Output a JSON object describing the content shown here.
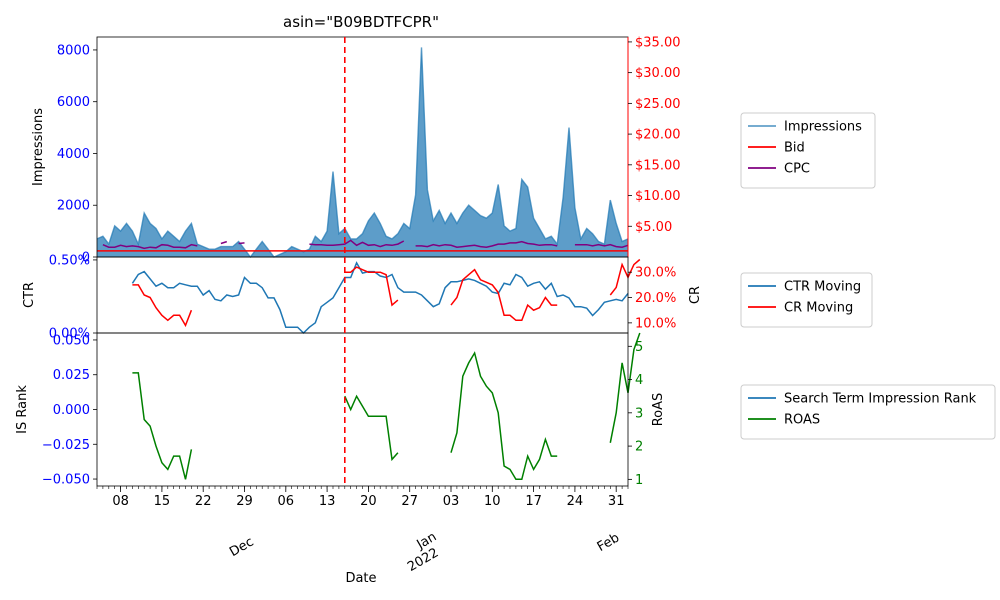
{
  "chart_data": {
    "title": "asin=\"B09BDTFCPR\"",
    "xlabel": "Date",
    "x_tick_labels": [
      "08",
      "15",
      "22",
      "29",
      "06",
      "13",
      "20",
      "27",
      "03",
      "10",
      "17",
      "24",
      "31"
    ],
    "x_month_labels": [
      {
        "text": "Dec",
        "sub": ""
      },
      {
        "text": "Jan",
        "sub": "2022"
      },
      {
        "text": "Feb",
        "sub": ""
      }
    ],
    "colors": {
      "impressions": "#1f77b4",
      "bid": "#ff0000",
      "cpc": "#800080",
      "ctr": "#1f77b4",
      "cr": "#ff0000",
      "is_rank": "#1f77b4",
      "roas": "#008000",
      "left_axis": "#0000ff",
      "vline": "#ff0000"
    },
    "panels": [
      {
        "id": "top",
        "type": "area+line",
        "ylabel_left": "Impressions",
        "ylabel_right": "",
        "ylim_left": [
          0,
          8500
        ],
        "yticks_left": [
          "0",
          "2000",
          "4000",
          "6000",
          "8000"
        ],
        "ylim_right": [
          0,
          35.8
        ],
        "yticks_right": [
          "$5.00",
          "$10.00",
          "$15.00",
          "$20.00",
          "$25.00",
          "$30.00",
          "$35.00"
        ],
        "legend": [
          "Impressions",
          "Bid",
          "CPC"
        ],
        "series": [
          {
            "name": "Impressions",
            "values": [
              700,
              800,
              500,
              1200,
              1000,
              1300,
              1000,
              500,
              1700,
              1300,
              1100,
              700,
              1000,
              800,
              600,
              1000,
              1300,
              500,
              400,
              300,
              300,
              400,
              400,
              400,
              600,
              300,
              0,
              300,
              600,
              300,
              0,
              100,
              200,
              400,
              300,
              200,
              300,
              800,
              600,
              1000,
              3300,
              900,
              1100,
              700,
              700,
              900,
              1400,
              1700,
              1300,
              800,
              700,
              900,
              1300,
              1100,
              2400,
              8100,
              2600,
              1400,
              1800,
              1300,
              1700,
              1300,
              1700,
              2000,
              1800,
              1600,
              1500,
              1700,
              2800,
              1200,
              1000,
              1100,
              3000,
              2700,
              1500,
              1100,
              700,
              800,
              500,
              2300,
              5000,
              1900,
              700,
              1100,
              900,
              600,
              500,
              2200,
              1300,
              600,
              700
            ]
          },
          {
            "name": "Bid",
            "values": [
              1.0,
              1.0,
              1.0,
              1.0,
              1.0,
              1.0,
              1.0,
              1.0,
              1.0,
              1.0,
              1.0,
              1.0,
              1.0,
              1.0,
              1.0,
              1.0,
              1.0,
              1.0,
              1.0,
              1.0,
              1.0,
              1.0,
              1.0,
              1.0,
              1.0,
              1.0,
              1.0,
              1.0,
              1.0,
              1.0,
              1.0,
              1.0,
              1.0,
              1.0,
              1.0,
              1.0,
              1.0,
              1.0,
              1.0,
              1.0,
              1.0,
              1.0,
              1.0,
              1.0,
              1.0,
              1.0,
              1.0,
              1.0,
              1.0,
              1.0,
              1.0,
              1.0,
              1.0,
              1.0,
              1.0,
              1.0,
              1.0,
              1.0,
              1.0,
              1.0,
              1.0,
              1.0,
              1.0,
              1.0,
              1.0,
              1.0,
              1.0,
              1.0,
              1.0,
              1.0,
              1.0,
              1.0,
              1.0,
              1.0,
              1.0,
              1.0,
              1.0,
              1.0,
              1.0,
              1.0,
              1.0,
              1.0,
              1.0,
              1.0,
              1.0,
              1.0,
              1.0,
              1.0,
              1.0,
              1.0,
              1.0
            ]
          },
          {
            "name": "CPC",
            "values": [
              null,
              2.0,
              1.6,
              1.6,
              1.9,
              1.7,
              1.8,
              1.7,
              1.4,
              1.6,
              1.5,
              2.0,
              1.9,
              1.6,
              1.6,
              1.5,
              2.0,
              1.8,
              null,
              null,
              null,
              2.2,
              2.5,
              null,
              2.2,
              2.3,
              null,
              null,
              null,
              null,
              null,
              null,
              null,
              null,
              null,
              null,
              2.1,
              2.0,
              2.0,
              1.9,
              1.9,
              2.0,
              2.1,
              2.7,
              1.9,
              2.4,
              1.9,
              2.0,
              1.7,
              2.0,
              1.9,
              2.1,
              2.6,
              null,
              1.8,
              1.8,
              1.7,
              2.0,
              1.8,
              2.0,
              1.9,
              1.6,
              1.7,
              1.8,
              1.9,
              1.7,
              1.6,
              1.8,
              2.1,
              2.1,
              2.3,
              2.3,
              2.5,
              2.2,
              2.1,
              1.9,
              2.0,
              2.0,
              1.8,
              null,
              null,
              2.0,
              2.0,
              2.0,
              1.8,
              2.0,
              1.8,
              2.0,
              1.7,
              1.6,
              1.9
            ]
          }
        ]
      },
      {
        "id": "mid",
        "type": "line",
        "ylabel_left": "CTR",
        "ylabel_right": "CR",
        "ylim_left": [
          0,
          0.52
        ],
        "yticks_left": [
          "0.00%",
          "0.50%"
        ],
        "ylim_right": [
          6,
          36
        ],
        "yticks_right": [
          "10.0%",
          "20.0%",
          "30.0%"
        ],
        "legend": [
          "CTR Moving",
          "CR Moving"
        ],
        "series": [
          {
            "name": "CTR Moving",
            "values": [
              null,
              null,
              null,
              null,
              null,
              null,
              0.34,
              0.4,
              0.42,
              0.37,
              0.32,
              0.34,
              0.31,
              0.31,
              0.34,
              0.33,
              0.32,
              0.32,
              0.26,
              0.29,
              0.23,
              0.22,
              0.26,
              0.25,
              0.26,
              0.38,
              0.34,
              0.34,
              0.31,
              0.24,
              0.24,
              0.16,
              0.04,
              0.04,
              0.04,
              0.0,
              0.04,
              0.07,
              0.18,
              0.21,
              0.24,
              0.31,
              0.38,
              0.38,
              0.48,
              0.41,
              0.42,
              0.42,
              0.39,
              0.38,
              0.4,
              0.31,
              0.28,
              0.28,
              0.28,
              0.26,
              0.22,
              0.18,
              0.2,
              0.31,
              0.35,
              0.35,
              0.36,
              0.37,
              0.36,
              0.34,
              0.32,
              0.28,
              0.27,
              0.34,
              0.33,
              0.4,
              0.38,
              0.32,
              0.34,
              0.35,
              0.3,
              0.34,
              0.25,
              0.26,
              0.24,
              0.18,
              0.18,
              0.17,
              0.12,
              0.16,
              0.21,
              0.22,
              0.23,
              0.22,
              0.27
            ]
          },
          {
            "name": "CR Moving",
            "values": [
              null,
              null,
              null,
              null,
              null,
              null,
              25,
              25,
              21,
              20,
              16,
              13,
              11,
              13,
              13,
              9,
              15,
              null,
              null,
              null,
              null,
              null,
              null,
              null,
              null,
              null,
              null,
              null,
              null,
              null,
              null,
              null,
              null,
              null,
              null,
              null,
              null,
              null,
              null,
              null,
              null,
              null,
              30,
              30,
              32,
              31,
              30,
              30,
              30,
              29,
              17,
              19,
              null,
              null,
              null,
              null,
              null,
              null,
              null,
              null,
              17,
              20,
              27,
              29,
              31,
              27,
              26,
              25,
              22,
              13,
              13,
              11,
              11,
              17,
              15,
              16,
              20,
              17,
              17,
              null,
              null,
              null,
              null,
              null,
              null,
              null,
              null,
              21,
              24,
              33,
              28,
              33,
              35
            ]
          }
        ]
      },
      {
        "id": "bottom",
        "type": "line",
        "ylabel_left": "IS Rank",
        "ylabel_right": "RoAS",
        "ylim_left": [
          -0.055,
          0.055
        ],
        "yticks_left": [
          "−0.050",
          "−0.025",
          "0.000",
          "0.025",
          "0.050"
        ],
        "ylim_right": [
          0.8,
          5.4
        ],
        "yticks_right": [
          "1",
          "2",
          "3",
          "4",
          "5"
        ],
        "legend": [
          "Search Term Impression Rank",
          "ROAS"
        ],
        "series": [
          {
            "name": "Search Term Impression Rank",
            "values": []
          },
          {
            "name": "ROAS",
            "values": [
              null,
              null,
              null,
              null,
              null,
              null,
              4.2,
              4.2,
              2.8,
              2.6,
              2.0,
              1.5,
              1.3,
              1.7,
              1.7,
              1.0,
              1.9,
              null,
              null,
              null,
              null,
              null,
              null,
              null,
              null,
              null,
              null,
              null,
              null,
              null,
              null,
              null,
              null,
              null,
              null,
              null,
              null,
              null,
              null,
              null,
              null,
              null,
              3.5,
              3.1,
              3.5,
              3.2,
              2.9,
              2.9,
              2.9,
              2.9,
              1.6,
              1.8,
              null,
              null,
              null,
              null,
              null,
              null,
              null,
              null,
              1.8,
              2.4,
              4.1,
              4.5,
              4.8,
              4.1,
              3.8,
              3.6,
              3.0,
              1.4,
              1.3,
              1.0,
              1.0,
              1.7,
              1.3,
              1.6,
              2.2,
              1.7,
              1.7,
              null,
              null,
              null,
              null,
              null,
              null,
              null,
              null,
              2.1,
              3.0,
              4.5,
              3.6,
              4.9,
              5.4
            ]
          }
        ]
      }
    ],
    "vline_date_index": 42,
    "legend_placement": "right"
  }
}
